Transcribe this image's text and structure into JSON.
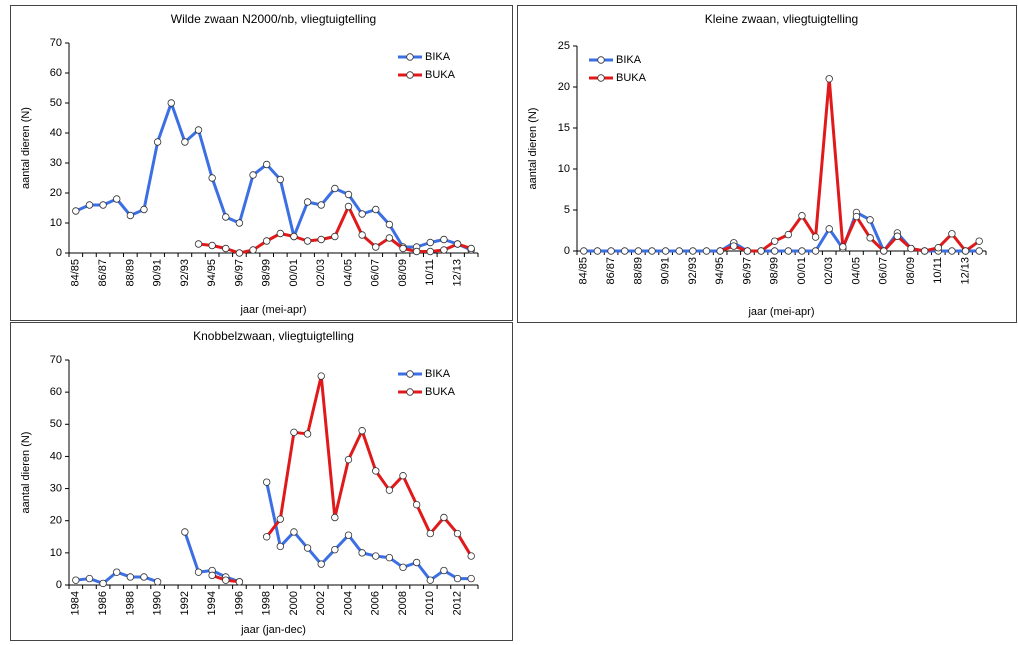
{
  "chart_data": [
    {
      "type": "line",
      "title": "Wilde zwaan N2000/nb, vliegtuigtelling",
      "xlabel": "jaar (mei-apr)",
      "ylabel": "aantal dieren (N)",
      "categories": [
        "84/85",
        null,
        "86/87",
        null,
        "88/89",
        null,
        "90/91",
        null,
        "92/93",
        null,
        "94/95",
        null,
        "96/97",
        null,
        "98/99",
        null,
        "00/01",
        null,
        "02/03",
        null,
        "04/05",
        null,
        "06/07",
        null,
        "08/09",
        null,
        "10/11",
        null,
        "12/13",
        null
      ],
      "series": [
        {
          "name": "BIKA",
          "color": "#3b6fe3",
          "values": [
            14,
            16,
            16,
            18,
            12.5,
            14.5,
            37,
            50,
            37,
            41,
            25,
            12,
            10,
            26,
            29.5,
            24.5,
            5.5,
            17,
            16,
            21.5,
            19.5,
            13,
            14.5,
            9.5,
            2,
            2,
            3.5,
            4.5,
            3,
            1
          ]
        },
        {
          "name": "BUKA",
          "color": "#e01a1a",
          "values": [
            null,
            null,
            null,
            null,
            null,
            null,
            null,
            null,
            null,
            3,
            2.5,
            1.5,
            0,
            1,
            4,
            6.5,
            5.5,
            4,
            4.5,
            5.5,
            15.5,
            6,
            2,
            5,
            1.5,
            0.5,
            0.5,
            1,
            3,
            1.5
          ]
        }
      ],
      "ylim": [
        0,
        70
      ],
      "yticks": [
        0,
        10,
        20,
        30,
        40,
        50,
        60,
        70
      ],
      "legend": "upper right"
    },
    {
      "type": "line",
      "title": "Kleine zwaan, vliegtuigtelling",
      "xlabel": "jaar (mei-apr)",
      "ylabel": "aantal dieren (N)",
      "categories": [
        "84/85",
        null,
        "86/87",
        null,
        "88/89",
        null,
        "90/91",
        null,
        "92/93",
        null,
        "94/95",
        null,
        "96/97",
        null,
        "98/99",
        null,
        "00/01",
        null,
        "02/03",
        null,
        "04/05",
        null,
        "06/07",
        null,
        "08/09",
        null,
        "10/11",
        null,
        "12/13",
        null
      ],
      "series": [
        {
          "name": "BIKA",
          "color": "#3b6fe3",
          "values": [
            0,
            0,
            0,
            0,
            0,
            0,
            0,
            0,
            0,
            0,
            0,
            1,
            0,
            0,
            0,
            0,
            0,
            0,
            2.7,
            0.3,
            4.7,
            3.8,
            0,
            2.2,
            0.3,
            0,
            0,
            0,
            0,
            0
          ]
        },
        {
          "name": "BUKA",
          "color": "#e01a1a",
          "values": [
            null,
            null,
            null,
            null,
            null,
            null,
            null,
            null,
            null,
            null,
            0,
            0.6,
            0,
            0,
            1.2,
            2,
            4.3,
            1.7,
            21,
            0.5,
            4.2,
            1.6,
            0,
            1.8,
            0.3,
            0,
            0.4,
            2.1,
            0,
            1.2
          ]
        }
      ],
      "ylim": [
        0,
        25
      ],
      "yticks": [
        0,
        5,
        10,
        15,
        20,
        25
      ],
      "legend": "upper left"
    },
    {
      "type": "line",
      "title": "Knobbelzwaan, vliegtuigtelling",
      "xlabel": "jaar (jan-dec)",
      "ylabel": "aantal dieren (N)",
      "categories": [
        "1984",
        null,
        "1986",
        null,
        "1988",
        null,
        "1990",
        null,
        "1992",
        null,
        "1994",
        null,
        "1996",
        null,
        "1998",
        null,
        "2000",
        null,
        "2002",
        null,
        "2004",
        null,
        "2006",
        null,
        "2008",
        null,
        "2010",
        null,
        "2012",
        null
      ],
      "series": [
        {
          "name": "BIKA",
          "color": "#3b6fe3",
          "values": [
            1.5,
            2,
            0.5,
            4,
            2.5,
            2.5,
            1,
            null,
            16.5,
            4,
            4.5,
            2.5,
            1,
            null,
            32,
            12,
            16.5,
            11.5,
            6.5,
            11,
            15.5,
            10,
            9,
            8.5,
            5.5,
            7,
            1.5,
            4.5,
            2,
            2
          ]
        },
        {
          "name": "BUKA",
          "color": "#e01a1a",
          "values": [
            null,
            null,
            null,
            null,
            null,
            null,
            null,
            null,
            null,
            null,
            3,
            1.5,
            1,
            null,
            15,
            20.5,
            47.5,
            47,
            65,
            21,
            39,
            48,
            35.5,
            29.5,
            34,
            25,
            16,
            21,
            16,
            9
          ]
        }
      ],
      "ylim": [
        0,
        70
      ],
      "yticks": [
        0,
        10,
        20,
        30,
        40,
        50,
        60,
        70
      ],
      "legend": "upper right"
    }
  ]
}
